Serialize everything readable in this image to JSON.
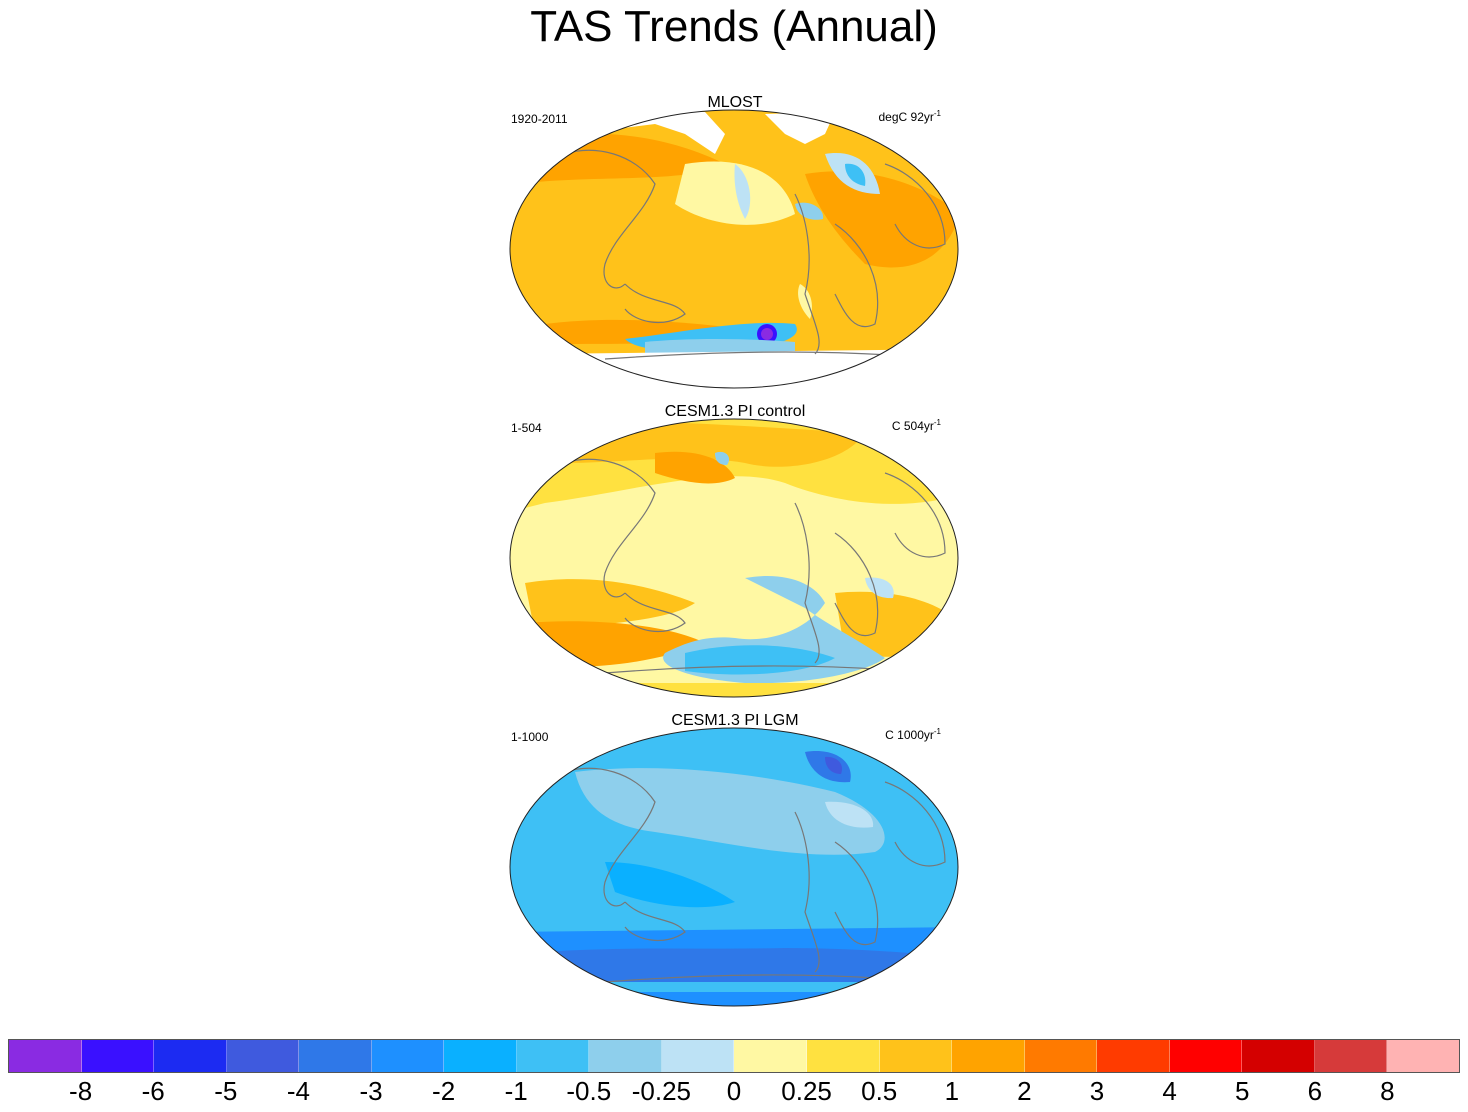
{
  "figure": {
    "title": "TAS Trends (Annual)"
  },
  "panels": [
    {
      "title": "MLOST",
      "period": "1920-2011",
      "units": "degC 92yr",
      "units_exponent": "-1"
    },
    {
      "title": "CESM1.3 PI control",
      "period": "1-504",
      "units": "C 504yr",
      "units_exponent": "-1"
    },
    {
      "title": "CESM1.3 PI LGM",
      "period": "1-1000",
      "units": "C 1000yr",
      "units_exponent": "-1"
    }
  ],
  "colorbar": {
    "colors": [
      "#8a2be2",
      "#3a10ff",
      "#1c2bf2",
      "#3f5ade",
      "#2f78e8",
      "#1e90ff",
      "#0ab0ff",
      "#3ec0f5",
      "#8ecfec",
      "#bde2f5",
      "#fff8a3",
      "#ffe140",
      "#ffc21a",
      "#ffa300",
      "#ff7a00",
      "#ff3b00",
      "#ff0000",
      "#d40000",
      "#d63a3a",
      "#ffb3b3"
    ],
    "labels": [
      "-8",
      "-6",
      "-5",
      "-4",
      "-3",
      "-2",
      "-1",
      "-0.5",
      "-0.25",
      "0",
      "0.25",
      "0.5",
      "1",
      "2",
      "3",
      "4",
      "5",
      "6",
      "8"
    ]
  }
}
